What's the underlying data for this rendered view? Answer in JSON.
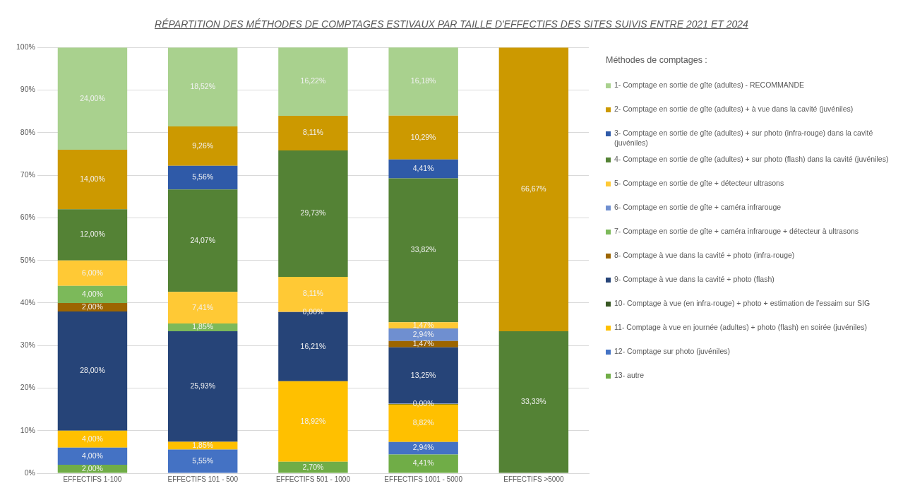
{
  "chart_data": {
    "type": "bar",
    "stacked": true,
    "title": "RÉPARTITION DES MÉTHODES DE COMPTAGES ESTIVAUX PAR TAILLE D'EFFECTIFS DES SITES SUIVIS ENTRE 2021 ET 2024",
    "legend_title": "Méthodes de comptages :",
    "legend": "right",
    "grid": "y",
    "categories": [
      "EFFECTIFS 1-100",
      "EFFECTIFS 101 - 500",
      "EFFECTIFS 501 - 1000",
      "EFFECTIFS 1001 - 5000",
      "EFFECTIFS >5000"
    ],
    "ylim": [
      0,
      100
    ],
    "yticks": [
      {
        "value": 0,
        "label": "0%"
      },
      {
        "value": 10,
        "label": "10%"
      },
      {
        "value": 20,
        "label": "20%"
      },
      {
        "value": 30,
        "label": "30%"
      },
      {
        "value": 40,
        "label": "40%"
      },
      {
        "value": 50,
        "label": "50%"
      },
      {
        "value": 60,
        "label": "60%"
      },
      {
        "value": 70,
        "label": "70%"
      },
      {
        "value": 80,
        "label": "80%"
      },
      {
        "value": 90,
        "label": "90%"
      },
      {
        "value": 100,
        "label": "100%"
      }
    ],
    "series": [
      {
        "name": "13- autre",
        "color": "#70ad47",
        "values": [
          2,
          null,
          2.7,
          4.41,
          null
        ],
        "value_labels": [
          "2,00%",
          null,
          "2,70%",
          "4,41%",
          null
        ]
      },
      {
        "name": "12- Comptage sur photo (juvéniles)",
        "color": "#4472c4",
        "values": [
          4,
          5.55,
          null,
          2.94,
          null
        ],
        "value_labels": [
          "4,00%",
          "5,55%",
          null,
          "2,94%",
          null
        ]
      },
      {
        "name": "11- Comptage à vue en journée (adultes) + photo (flash) en soirée (juvéniles)",
        "color": "#ffc000",
        "values": [
          4,
          1.85,
          18.92,
          8.82,
          null
        ],
        "value_labels": [
          "4,00%",
          "1,85%",
          "18,92%",
          "8,82%",
          null
        ]
      },
      {
        "name": "10- Comptage à vue (en infra-rouge) + photo + estimation de l'essaim sur SIG",
        "color": "#385723",
        "values": [
          null,
          null,
          null,
          0,
          null
        ],
        "value_labels": [
          null,
          null,
          null,
          "0,00%",
          null
        ]
      },
      {
        "name": "9- Comptage à vue dans la cavité + photo (flash)",
        "color": "#264478",
        "values": [
          28,
          25.93,
          16.21,
          13.25,
          null
        ],
        "value_labels": [
          "28,00%",
          "25,93%",
          "16,21%",
          "13,25%",
          null
        ]
      },
      {
        "name": "8- Comptage à vue dans la cavité + photo (infra-rouge)",
        "color": "#9c6500",
        "values": [
          2,
          null,
          0,
          1.47,
          null
        ],
        "value_labels": [
          "2,00%",
          null,
          "0,00%",
          "1,47%",
          null
        ]
      },
      {
        "name": "7- Comptage en sortie de gîte + caméra infrarouge + détecteur à ultrasons",
        "color": "#7cb95a",
        "values": [
          4,
          1.85,
          null,
          null,
          null
        ],
        "value_labels": [
          "4,00%",
          "1,85%",
          null,
          null,
          null
        ]
      },
      {
        "name": "6- Comptage en sortie de gîte + caméra infrarouge",
        "color": "#6f8fd0",
        "values": [
          null,
          null,
          null,
          2.94,
          null
        ],
        "value_labels": [
          null,
          null,
          null,
          "2,94%",
          null
        ]
      },
      {
        "name": "5- Comptage en sortie de gîte + détecteur ultrasons",
        "color": "#ffc935",
        "values": [
          6,
          7.41,
          8.11,
          1.47,
          null
        ],
        "value_labels": [
          "6,00%",
          "7,41%",
          "8,11%",
          "1,47%",
          null
        ]
      },
      {
        "name": "4- Comptage en sortie de gîte (adultes) + sur photo (flash) dans la cavité (juvéniles)",
        "color": "#548235",
        "values": [
          12,
          24.07,
          29.73,
          33.82,
          33.33
        ],
        "value_labels": [
          "12,00%",
          "24,07%",
          "29,73%",
          "33,82%",
          "33,33%"
        ]
      },
      {
        "name": "3- Comptage en sortie de gîte (adultes) + sur photo (infra-rouge) dans la cavité (juvéniles)",
        "color": "#2f5aa8",
        "values": [
          null,
          5.56,
          null,
          4.41,
          null
        ],
        "value_labels": [
          null,
          "5,56%",
          null,
          "4,41%",
          null
        ]
      },
      {
        "name": "2- Comptage en sortie de gîte (adultes) + à vue dans la cavité (juvéniles)",
        "color": "#cc9900",
        "values": [
          14,
          9.26,
          8.11,
          10.29,
          66.67
        ],
        "value_labels": [
          "14,00%",
          "9,26%",
          "8,11%",
          "10,29%",
          "66,67%"
        ]
      },
      {
        "name": "1- Comptage en sortie de gîte (adultes) - RECOMMANDE",
        "color": "#a9d18e",
        "values": [
          24,
          18.52,
          16.22,
          16.18,
          null
        ],
        "value_labels": [
          "24,00%",
          "18,52%",
          "16,22%",
          "16,18%",
          null
        ]
      }
    ]
  }
}
